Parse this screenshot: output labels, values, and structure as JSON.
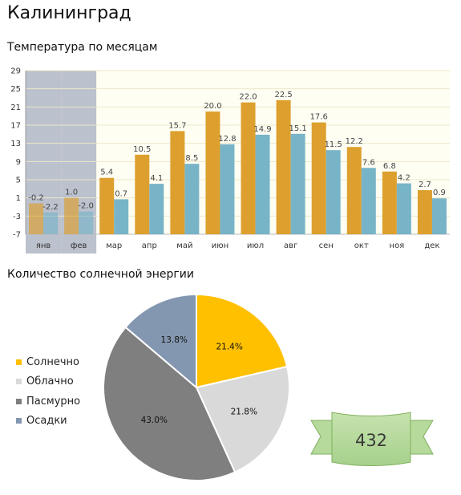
{
  "city": "Калининград",
  "temperature_title": "Температура по месяцам",
  "sun_title": "Количество солнечной энергии",
  "colors": {
    "max_bar": "#DDA02E",
    "min_bar": "#78B4C8",
    "highlight": "#BBC1CD",
    "plot_bg": "#FFFEF3",
    "grid": "#EEE7C9"
  },
  "chart_data": [
    {
      "type": "bar",
      "categories": [
        "янв",
        "фев",
        "мар",
        "апр",
        "май",
        "июн",
        "июл",
        "авг",
        "сен",
        "окт",
        "ноя",
        "дек"
      ],
      "series": [
        {
          "values": [
            -0.2,
            1.0,
            5.4,
            10.5,
            15.7,
            20.0,
            22.0,
            22.5,
            17.6,
            12.2,
            6.8,
            2.7
          ]
        },
        {
          "values": [
            -2.2,
            -2.0,
            0.7,
            4.1,
            8.5,
            12.8,
            14.9,
            15.1,
            11.5,
            7.6,
            4.2,
            0.9
          ]
        }
      ],
      "value_labels": [
        [
          "-0.2",
          "1.0",
          "5.4",
          "10.5",
          "15.7",
          "20.0",
          "22.0",
          "22.5",
          "17.6",
          "12.2",
          "6.8",
          "2.7"
        ],
        [
          "-2.2",
          "-2.0",
          "0.7",
          "4.1",
          "8.5",
          "12.8",
          "14.9",
          "15.1",
          "11.5",
          "7.6",
          "4.2",
          "0.9"
        ]
      ],
      "y_ticks": [
        29,
        25,
        21,
        17,
        13,
        9,
        5,
        1,
        -3,
        -7
      ],
      "ylim": [
        -7,
        29
      ],
      "highlighted_categories": [
        "янв",
        "фев"
      ],
      "grid": true
    },
    {
      "type": "pie",
      "labels": [
        "Солнечно",
        "Облачно",
        "Пасмурно",
        "Осадки"
      ],
      "values": [
        21.4,
        21.8,
        43.0,
        13.8
      ],
      "value_labels": [
        "21.4%",
        "21.8%",
        "43.0%",
        "13.8%"
      ],
      "colors": [
        "#FFC000",
        "#D9D9D9",
        "#7F7F7F",
        "#8497B0"
      ],
      "legend": "left"
    }
  ],
  "badge": {
    "value": "432"
  }
}
